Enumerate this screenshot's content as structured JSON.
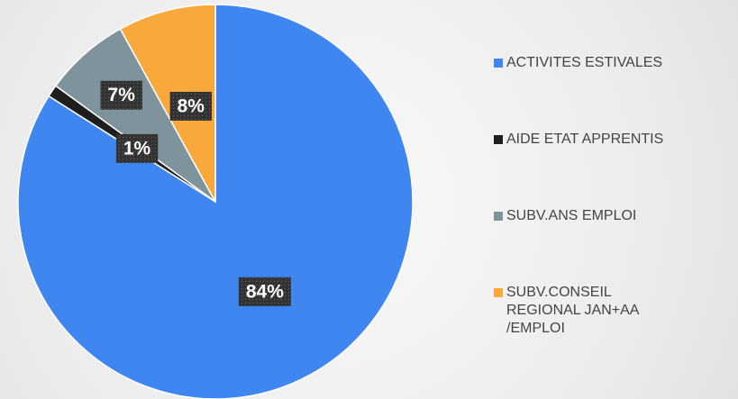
{
  "chart_data": {
    "type": "pie",
    "categories": [
      "ACTIVITES ESTIVALES",
      "AIDE ETAT APPRENTIS",
      "SUBV.ANS EMPLOI",
      "SUBV.CONSEIL REGIONAL JAN+AA /EMPLOI"
    ],
    "values": [
      84,
      1,
      7,
      8
    ],
    "value_labels": [
      "84%",
      "1%",
      "7%",
      "8%"
    ],
    "colors": [
      "#3f86f0",
      "#1e1e1e",
      "#7e939c",
      "#f9a93c"
    ],
    "legend": "right"
  }
}
